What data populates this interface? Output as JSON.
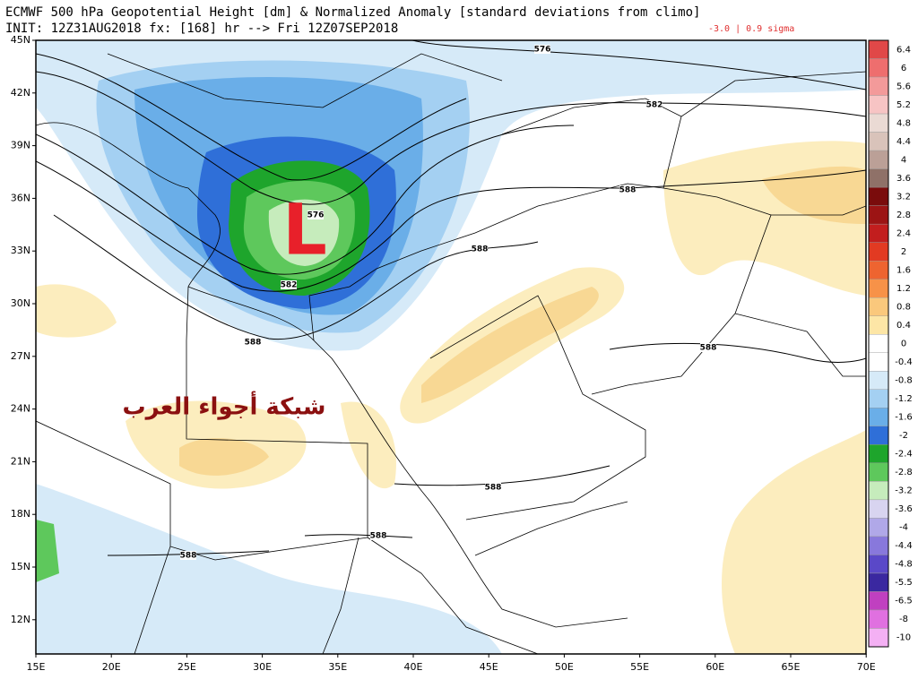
{
  "header": {
    "title": "ECMWF 500 hPa Geopotential Height [dm] & Normalized Anomaly [standard deviations from climo]",
    "subtitle": "INIT: 12Z31AUG2018 fx: [168] hr --> Fri 12Z07SEP2018",
    "sigma_note": "-3.0 | 0.9 sigma"
  },
  "map": {
    "low_marker": "L",
    "watermark": "شبكة أجواء العرب",
    "lat_labels": [
      "45N",
      "42N",
      "39N",
      "36N",
      "33N",
      "30N",
      "27N",
      "24N",
      "21N",
      "18N",
      "15N",
      "12N"
    ],
    "lon_labels": [
      "15E",
      "20E",
      "25E",
      "30E",
      "35E",
      "40E",
      "45E",
      "50E",
      "55E",
      "60E",
      "65E",
      "70E"
    ],
    "contour_labels": [
      "576",
      "582",
      "588",
      "576",
      "588",
      "582",
      "588",
      "588",
      "588",
      "588",
      "588"
    ]
  },
  "colorbar": {
    "labels": [
      6.4,
      6,
      5.6,
      5.2,
      4.8,
      4.4,
      4,
      3.6,
      3.2,
      2.8,
      2.4,
      2,
      1.6,
      1.2,
      0.8,
      0.4,
      0,
      -0.4,
      -0.8,
      -1.2,
      -1.6,
      -2,
      -2.4,
      -2.8,
      -3.2,
      -3.6,
      -4,
      -4.4,
      -4.8,
      -5.5,
      -6.5,
      -8,
      -10
    ],
    "colors": [
      "#e04848",
      "#ee6e6e",
      "#f39a9a",
      "#f7c4c4",
      "#eadad4",
      "#d9c3ba",
      "#bba097",
      "#8f7168",
      "#7a0c0c",
      "#9c1414",
      "#c21e1e",
      "#e23a22",
      "#ee6430",
      "#f79248",
      "#fac87c",
      "#fde6a6",
      "#ffffff",
      "#ffffff",
      "#d6eaf8",
      "#a4d0f2",
      "#6aaee8",
      "#2f6fd8",
      "#1ea52c",
      "#5ec85c",
      "#c6ecbc",
      "#d8d4f0",
      "#b0a8e8",
      "#8878dc",
      "#5a48c8",
      "#3a28a0",
      "#c040c0",
      "#e070e0",
      "#f4b0f4"
    ]
  }
}
